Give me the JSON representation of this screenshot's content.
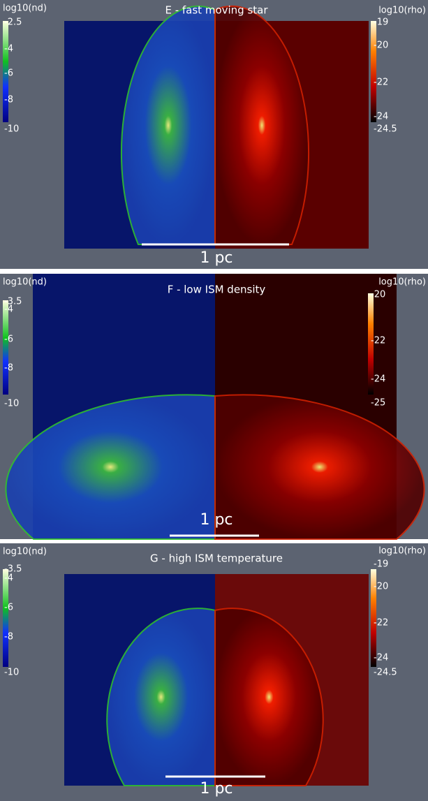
{
  "panels": [
    {
      "title": "E - fast moving star",
      "left_label": "log10(nd)",
      "left_ticks": [
        "-2.5",
        "-4",
        "-6",
        "-8",
        "-10"
      ],
      "right_label": "log10(rho)",
      "right_ticks": [
        "-19",
        "-20",
        "-22",
        "-24",
        "-24.5"
      ],
      "scale": "1 pc"
    },
    {
      "title": "F - low ISM density",
      "left_label": "log10(nd)",
      "left_ticks": [
        "-3.5",
        "-4",
        "-6",
        "-8",
        "-10"
      ],
      "right_label": "log10(rho)",
      "right_ticks": [
        "-20",
        "-22",
        "-24",
        "-25"
      ],
      "scale": "1 pc"
    },
    {
      "title": "G - high ISM temperature",
      "left_label": "log10(nd)",
      "left_ticks": [
        "-3.5",
        "-4",
        "-6",
        "-8",
        "-10"
      ],
      "right_label": "log10(rho)",
      "right_ticks": [
        "-19",
        "-20",
        "-22",
        "-24",
        "-24.5"
      ],
      "scale": "1 pc"
    }
  ]
}
